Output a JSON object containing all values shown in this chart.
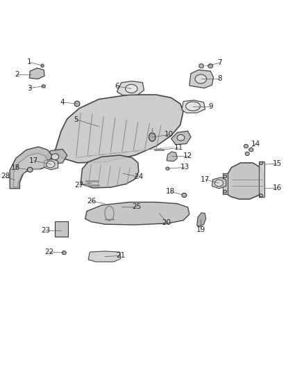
{
  "title": "",
  "bg_color": "#ffffff",
  "fig_width": 4.38,
  "fig_height": 5.33,
  "dpi": 100,
  "label_fontsize": 7.5,
  "line_color": "#333333",
  "text_color": "#222222",
  "part_color": "#555555",
  "leader_color": "#555555"
}
